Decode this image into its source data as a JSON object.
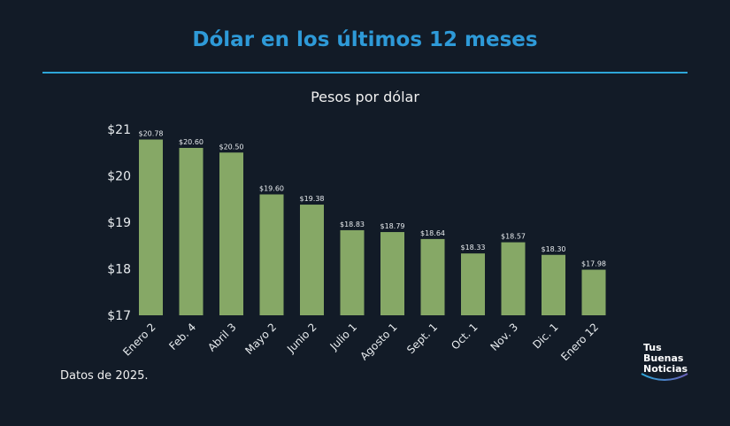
{
  "title": "Dólar en los últimos 12 meses",
  "note": "Datos de 2025.",
  "logo": {
    "line1": "Tus",
    "line2": "Buenas",
    "line3": "Noticias"
  },
  "colors": {
    "background": "#121b27",
    "title": "#2e9ad8",
    "bar": "#86a866"
  },
  "chart_data": {
    "type": "bar",
    "title": "Pesos por dólar",
    "categories": [
      "Enero 2",
      "Feb. 4",
      "Abril 3",
      "Mayo 2",
      "Junio 2",
      "Julio 1",
      "Agosto 1",
      "Sept. 1",
      "Oct. 1",
      "Nov. 3",
      "Dic. 1",
      "Enero 12"
    ],
    "values": [
      20.78,
      20.6,
      20.5,
      19.6,
      19.38,
      18.83,
      18.79,
      18.64,
      18.33,
      18.57,
      18.3,
      17.98
    ],
    "data_labels": [
      "$20.78",
      "$20.60",
      "$20.50",
      "$19.60",
      "$19.38",
      "$18.83",
      "$18.79",
      "$18.64",
      "$18.33",
      "$18.57",
      "$18.30",
      "$17.98"
    ],
    "yticks": [
      17,
      18,
      19,
      20,
      21
    ],
    "ytick_labels": [
      "$17",
      "$18",
      "$19",
      "$20",
      "$21"
    ],
    "ylim": [
      17,
      21
    ],
    "grid": false,
    "legend": "none"
  }
}
